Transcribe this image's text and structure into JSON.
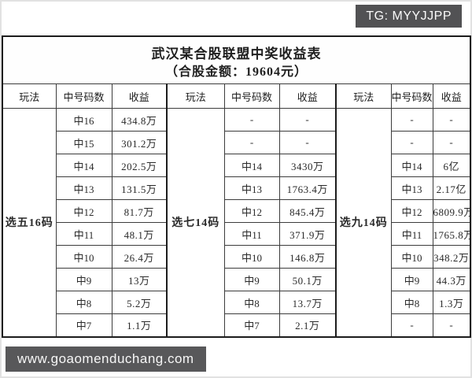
{
  "top_banner": {
    "text": "TG: MYYJJPP",
    "bg": "#525254"
  },
  "bottom_banner": {
    "text": "www.goaomenduchang.com",
    "bg": "#58585a"
  },
  "table": {
    "title_line1": "武汉某合股联盟中奖收益表",
    "title_line2": "（合股金额：19604元）",
    "header": [
      "玩法",
      "中号码数",
      "收益"
    ],
    "sections": [
      {
        "play": "选五16码",
        "rows": [
          [
            "中16",
            "434.8万"
          ],
          [
            "中15",
            "301.2万"
          ],
          [
            "中14",
            "202.5万"
          ],
          [
            "中13",
            "131.5万"
          ],
          [
            "中12",
            "81.7万"
          ],
          [
            "中11",
            "48.1万"
          ],
          [
            "中10",
            "26.4万"
          ],
          [
            "中9",
            "13万"
          ],
          [
            "中8",
            "5.2万"
          ],
          [
            "中7",
            "1.1万"
          ]
        ]
      },
      {
        "play": "选七14码",
        "rows": [
          [
            "-",
            "-"
          ],
          [
            "-",
            "-"
          ],
          [
            "中14",
            "3430万"
          ],
          [
            "中13",
            "1763.4万"
          ],
          [
            "中12",
            "845.4万"
          ],
          [
            "中11",
            "371.9万"
          ],
          [
            "中10",
            "146.8万"
          ],
          [
            "中9",
            "50.1万"
          ],
          [
            "中8",
            "13.7万"
          ],
          [
            "中7",
            "2.1万"
          ]
        ]
      },
      {
        "play": "选九14码",
        "rows": [
          [
            "-",
            "-"
          ],
          [
            "-",
            "-"
          ],
          [
            "中14",
            "6亿"
          ],
          [
            "中13",
            "2.17亿"
          ],
          [
            "中12",
            "6809.9万"
          ],
          [
            "中11",
            "1765.8万"
          ],
          [
            "中10",
            "348.2万"
          ],
          [
            "中9",
            "44.3万"
          ],
          [
            "中8",
            "1.3万"
          ],
          [
            "-",
            "-"
          ]
        ]
      }
    ]
  }
}
